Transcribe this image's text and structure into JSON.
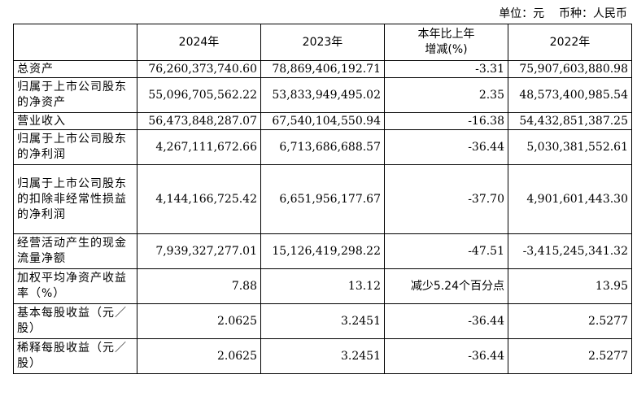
{
  "unit_line": "单位：元    币种：人民币",
  "table": {
    "headers": [
      "",
      "2024年",
      "2023年",
      "本年比上年\n增减(%)",
      "2022年"
    ],
    "rows": [
      {
        "label": "总资产",
        "v2024": "76,260,373,740.60",
        "v2023": "78,869,406,192.71",
        "change": "-3.31",
        "v2022": "75,907,603,880.98"
      },
      {
        "label": "归属于上市公司股东的净资产",
        "v2024": "55,096,705,562.22",
        "v2023": "53,833,949,495.02",
        "change": "2.35",
        "v2022": "48,573,400,985.54"
      },
      {
        "label": "营业收入",
        "v2024": "56,473,848,287.07",
        "v2023": "67,540,104,550.94",
        "change": "-16.38",
        "v2022": "54,432,851,387.25"
      },
      {
        "label": "归属于上市公司股东的净利润",
        "v2024": "4,267,111,672.66",
        "v2023": "6,713,686,688.57",
        "change": "-36.44",
        "v2022": "5,030,381,552.61"
      },
      {
        "label": "归属于上市公司股东的扣除非经常性损益的净利润",
        "v2024": "4,144,166,725.42",
        "v2023": "6,651,956,177.67",
        "change": "-37.70",
        "v2022": "4,901,601,443.30"
      },
      {
        "label": "经营活动产生的现金流量净额",
        "v2024": "7,939,327,277.01",
        "v2023": "15,126,419,298.22",
        "change": "-47.51",
        "v2022": "-3,415,245,341.32"
      },
      {
        "label": "加权平均净资产收益率（%）",
        "v2024": "7.88",
        "v2023": "13.12",
        "change": "减少5.24个百分点",
        "v2022": "13.95"
      },
      {
        "label": "基本每股收益（元／股）",
        "v2024": "2.0625",
        "v2023": "3.2451",
        "change": "-36.44",
        "v2022": "2.5277"
      },
      {
        "label": "稀释每股收益（元／股）",
        "v2024": "2.0625",
        "v2023": "3.2451",
        "change": "-36.44",
        "v2022": "2.5277"
      }
    ]
  }
}
